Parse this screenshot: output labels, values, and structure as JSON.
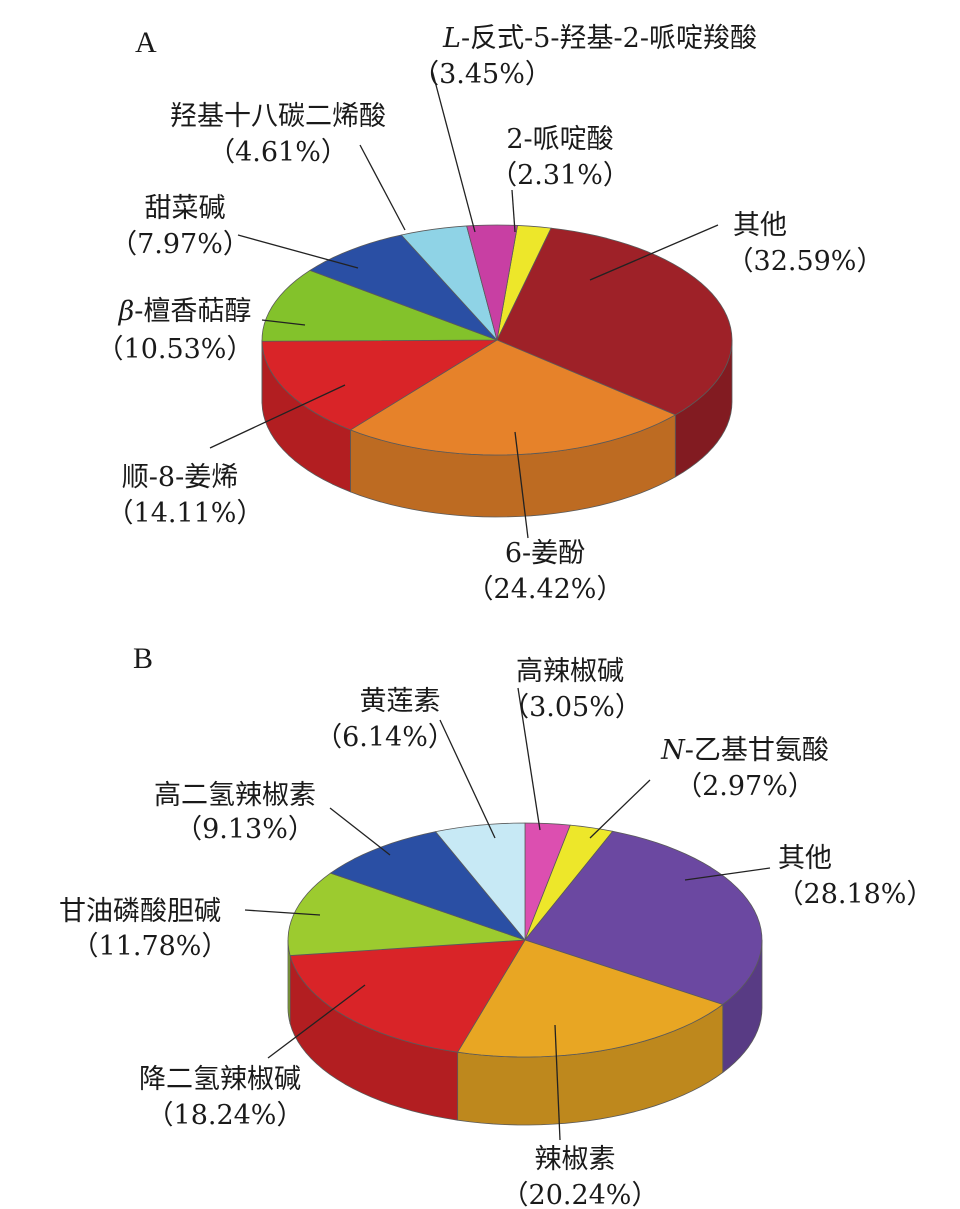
{
  "chart_data": [
    {
      "type": "pie",
      "panel_label": "A",
      "slices": [
        {
          "name": "2-哌啶酸",
          "pct_text": "（2.31%）",
          "value": 2.31,
          "color": "#ede72a"
        },
        {
          "name": "其他",
          "pct_text": "（32.59%）",
          "value": 32.59,
          "color": "#9e2128"
        },
        {
          "name": "6-姜酚",
          "pct_text": "（24.42%）",
          "value": 24.42,
          "color": "#e6822a"
        },
        {
          "name": "顺-8-姜烯",
          "pct_text": "（14.11%）",
          "value": 14.11,
          "color": "#d92428"
        },
        {
          "name": "-檀香萜醇",
          "name_prefix": "β",
          "pct_text": "（10.53%）",
          "value": 10.53,
          "color": "#83c22b"
        },
        {
          "name": "甜菜碱",
          "pct_text": "（7.97%）",
          "value": 7.97,
          "color": "#2a4fa4"
        },
        {
          "name": "羟基十八碳二烯酸",
          "pct_text": "（4.61%）",
          "value": 4.61,
          "color": "#8fd3e6"
        },
        {
          "name": "-反式-5-羟基-2-哌啶羧酸",
          "name_prefix": "L",
          "pct_text": "（3.45%）",
          "value": 3.45,
          "color": "#c83fa3"
        }
      ]
    },
    {
      "type": "pie",
      "panel_label": "B",
      "slices": [
        {
          "name": "高辣椒碱",
          "pct_text": "（3.05%）",
          "value": 3.05,
          "color": "#dc4fb0"
        },
        {
          "name": "-乙基甘氨酸",
          "name_prefix": "N",
          "pct_text": "（2.97%）",
          "value": 2.97,
          "color": "#ede72a"
        },
        {
          "name": "其他",
          "pct_text": "（28.18%）",
          "value": 28.18,
          "color": "#6b48a1"
        },
        {
          "name": "辣椒素",
          "pct_text": "（20.24%）",
          "value": 20.24,
          "color": "#e8a623"
        },
        {
          "name": "降二氢辣椒碱",
          "pct_text": "（18.24%）",
          "value": 18.24,
          "color": "#d92428"
        },
        {
          "name": "甘油磷酸胆碱",
          "pct_text": "（11.78%）",
          "value": 11.78,
          "color": "#9ccb2f"
        },
        {
          "name": "高二氢辣椒素",
          "pct_text": "（9.13%）",
          "value": 9.13,
          "color": "#2a4fa4"
        },
        {
          "name": "黄莲素",
          "pct_text": "（6.14%）",
          "value": 6.14,
          "color": "#c7e9f5"
        }
      ]
    }
  ]
}
